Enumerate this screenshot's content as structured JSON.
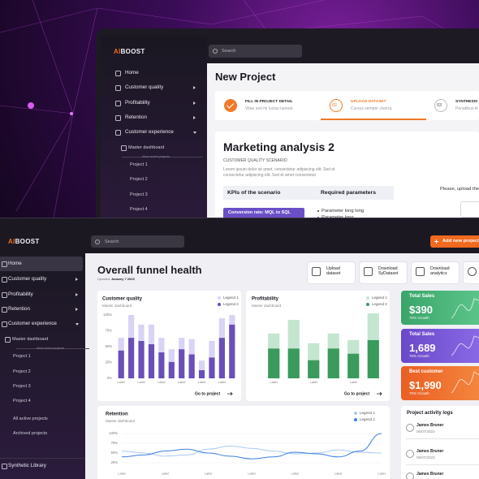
{
  "back_window": {
    "brand": {
      "accent": "AI",
      "name": "BOOST"
    },
    "search": "Search",
    "menu": [
      "Home",
      "Customer quality",
      "Profitability",
      "Retention",
      "Customer experience"
    ],
    "submenu": "Master dashboard",
    "recent_label": "Most recent projects",
    "projects": [
      "Project 1",
      "Project 2",
      "Project 3",
      "Project 4"
    ],
    "page_title": "New Project",
    "steps": [
      {
        "title": "FILL IN PROJECT DETAIL",
        "subtitle": "Vitae sed mi luctus laoreet."
      },
      {
        "number": "02",
        "title": "UPLOAD DATASET",
        "subtitle": "Cursus semper viverra."
      },
      {
        "number": "03",
        "title": "SYNTHESIS",
        "subtitle": "Penatibus et magnis"
      }
    ],
    "project_card": {
      "title": "Marketing analysis 2",
      "scenario": "CUSTOMER QUALITY SCENARIO",
      "description": [
        "Lorem ipsum dolor sit amet, consectetur adipiscing elit. Sed et",
        "consectetur adipiscing elit. Sed et amet consectetur"
      ],
      "columns": [
        "KPIs of the scenario",
        "Required parameters"
      ],
      "kpi": "Conversion rate: MQL to SQL",
      "parameters": [
        "Parameter long long",
        "Parameter long"
      ],
      "upload_hint": "Please, upload the dataset"
    }
  },
  "front_window": {
    "brand": {
      "accent": "AI",
      "name": "BOOST"
    },
    "search": "Search",
    "add_button": "Add new project",
    "menu": [
      "Home",
      "Customer quality",
      "Profitability",
      "Retention",
      "Customer experience"
    ],
    "submenu": "Master dashboard",
    "recent_label": "Most recent projects",
    "projects": [
      "Project 1",
      "Project 2",
      "Project 3",
      "Project 4"
    ],
    "extra_links": [
      "All active projects",
      "Archived projects"
    ],
    "library": "Synthetic Library",
    "page_title": "Overall funnel health",
    "updated": {
      "label": "Updated:",
      "date": "January 7 2023"
    },
    "actions": [
      "Upload dataset",
      "Download SyDataset",
      "Download analytics"
    ],
    "charts": [
      {
        "type": "bar",
        "title": "Customer quality",
        "subtitle": "Master dashboard",
        "categories": [
          "Label",
          null,
          "Label",
          null,
          "Label",
          null,
          "Label",
          null,
          "Label",
          null,
          "Label",
          null
        ],
        "series": [
          {
            "name": "Legend 1",
            "color": "#d9d3f5",
            "values": [
              20,
              36,
              26,
              31,
              23,
              20,
              18,
              24,
              15,
              26,
              31,
              15
            ]
          },
          {
            "name": "Legend 2",
            "color": "#6a4fb8",
            "values": [
              44,
              64,
              59,
              54,
              41,
              26,
              46,
              38,
              13,
              33,
              64,
              85
            ]
          }
        ],
        "ylim": [
          0,
          100
        ],
        "yticks": [
          {
            "value": 0,
            "label": "0%"
          },
          {
            "value": 25,
            "label": "25%"
          },
          {
            "value": 50,
            "label": "50%"
          },
          {
            "value": 75,
            "label": "75%"
          },
          {
            "value": 100,
            "label": "100%"
          }
        ],
        "grid": false,
        "link": "Go to project"
      },
      {
        "type": "bar",
        "title": "Profitability",
        "subtitle": "Master dashboard",
        "categories": [
          "Label",
          null,
          "Label",
          null,
          "Label",
          null
        ],
        "series": [
          {
            "name": "Legend 1",
            "color": "#c4e5cf",
            "values": [
              23,
              44,
              26,
              23,
              21,
              41
            ]
          },
          {
            "name": "Legend 2",
            "color": "#3b9a5d",
            "values": [
              46,
              46,
              28,
              46,
              38,
              59
            ]
          }
        ],
        "ylim": [
          0,
          100
        ],
        "grid": false,
        "link": "Go to project"
      },
      {
        "type": "line",
        "title": "Retention",
        "subtitle": "Master dashboard",
        "categories": [
          "Label",
          null,
          "Label",
          null,
          "Label",
          null,
          "Label",
          null,
          "Label",
          null,
          "Label",
          null,
          "Label"
        ],
        "series": [
          {
            "name": "Legend 1",
            "color": "#a9c9f2",
            "values": [
              55,
              50,
              42,
              45,
              60,
              68,
              62,
              55,
              48,
              50,
              58,
              52,
              50
            ]
          },
          {
            "name": "Legend 2",
            "color": "#3f7fe0",
            "values": [
              40,
              45,
              55,
              60,
              50,
              42,
              35,
              40,
              52,
              48,
              40,
              55,
              100
            ]
          }
        ],
        "ylim": [
          20,
          100
        ],
        "yticks": [
          {
            "value": 25,
            "label": "25%"
          },
          {
            "value": 50,
            "label": "50%"
          },
          {
            "value": 75,
            "label": "75%"
          },
          {
            "value": 100,
            "label": "100%"
          }
        ],
        "grid": true
      }
    ],
    "stats": [
      {
        "title": "Total Sales",
        "value": "$390",
        "growth": "70% Growth"
      },
      {
        "title": "Total Sales",
        "value": "1,689",
        "growth": "70% Growth"
      },
      {
        "title": "Best customer",
        "value": "$1,990",
        "growth": "70% Growth"
      }
    ],
    "activity": {
      "title": "Project activity logs",
      "entries": [
        {
          "name": "James Bruner",
          "date": "05/07/2023"
        },
        {
          "name": "James Bruner",
          "date": "05/07/2023"
        },
        {
          "name": "James Bruner",
          "date": "05/07/2023"
        }
      ]
    }
  }
}
